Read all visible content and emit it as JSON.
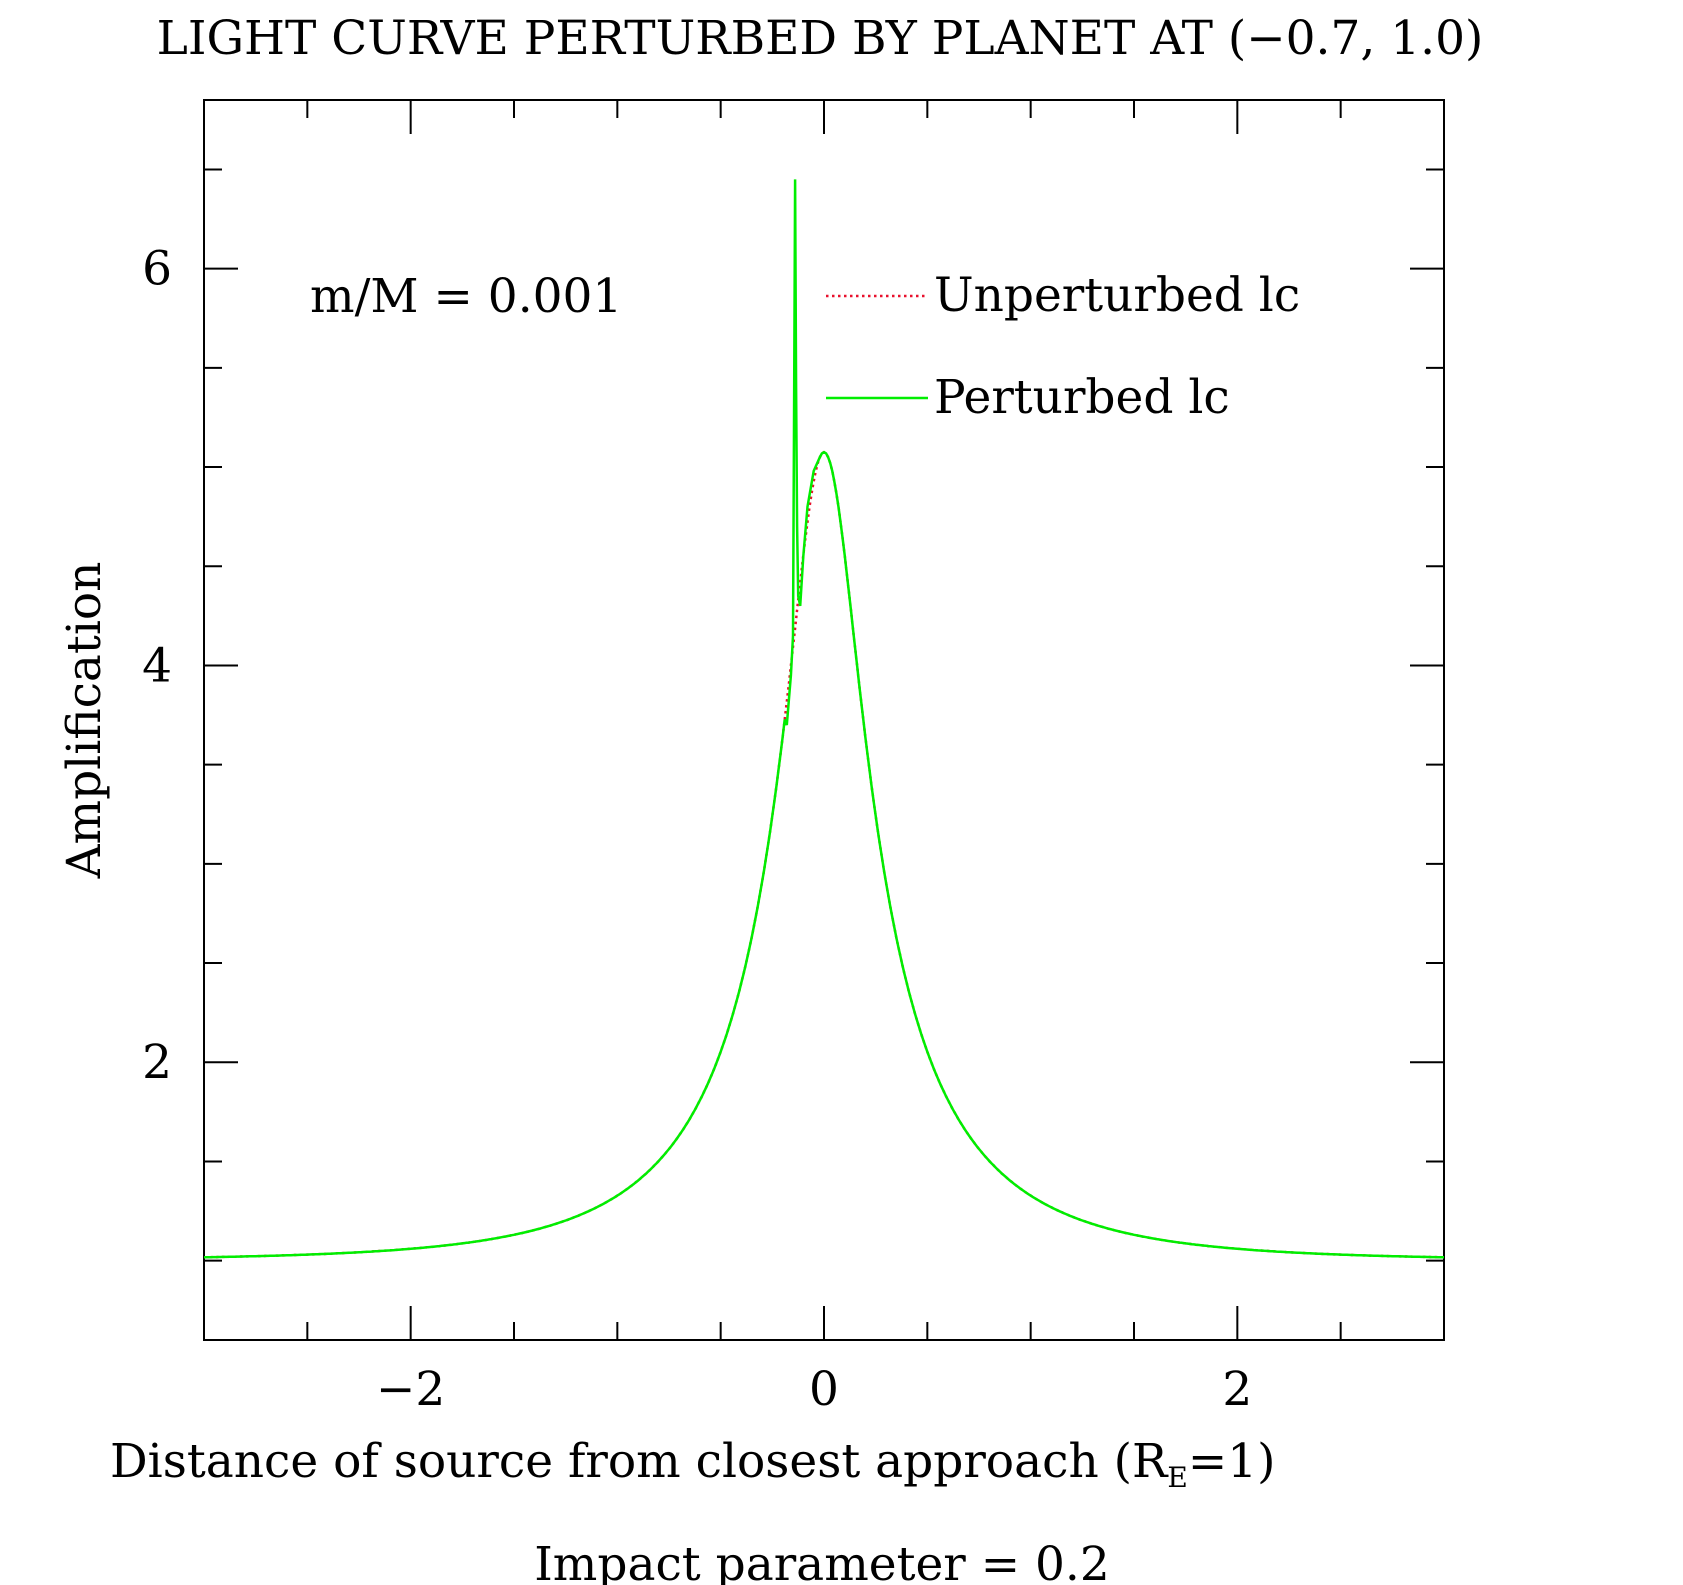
{
  "chart_data": {
    "type": "line",
    "title": "LIGHT CURVE PERTURBED BY PLANET AT (−0.7, 1.0)",
    "xlabel": "Distance of source from closest approach (R",
    "xlabel_sub": "E",
    "xlabel_tail": "=1)",
    "subtitle": "Impact parameter = 0.2",
    "ylabel": "Amplification",
    "annotation": "m/M = 0.001",
    "xlim": [
      -3,
      3
    ],
    "ylim": [
      0.6,
      6.85
    ],
    "x_ticks": [
      {
        "value": -2,
        "label": "−2"
      },
      {
        "value": 0,
        "label": "0"
      },
      {
        "value": 2,
        "label": "2"
      }
    ],
    "x_minor_step": 0.5,
    "y_ticks": [
      {
        "value": 2,
        "label": "2"
      },
      {
        "value": 4,
        "label": "4"
      },
      {
        "value": 6,
        "label": "6"
      }
    ],
    "y_minor_step": 0.5,
    "impact_parameter": 0.2,
    "series": [
      {
        "name": "Unperturbed lc",
        "color": "#e8112d",
        "style": "dotted",
        "model": "point-lens Paczynski curve, u0 = 0.2",
        "peak": [
          0.0,
          5.1
        ]
      },
      {
        "name": "Perturbed lc",
        "color": "#00ee00",
        "style": "solid",
        "perturbation": [
          [
            -0.18,
            3.7
          ],
          [
            -0.16,
            3.95
          ],
          [
            -0.15,
            4.15
          ],
          [
            -0.145,
            5.2
          ],
          [
            -0.14,
            6.45
          ],
          [
            -0.135,
            5.4
          ],
          [
            -0.13,
            4.7
          ],
          [
            -0.125,
            4.35
          ],
          [
            -0.115,
            4.3
          ],
          [
            -0.1,
            4.55
          ],
          [
            -0.08,
            4.8
          ],
          [
            -0.05,
            4.98
          ],
          [
            -0.02,
            5.05
          ]
        ]
      }
    ],
    "legend": "top-right"
  }
}
